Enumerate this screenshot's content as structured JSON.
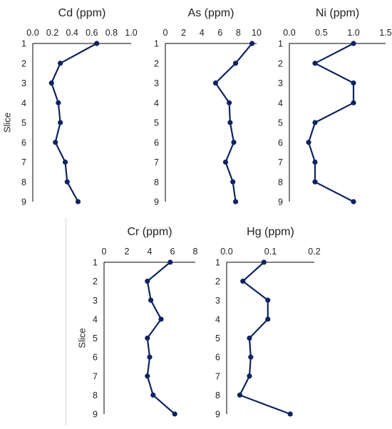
{
  "chart_data": [
    {
      "type": "line",
      "title": "Cd (ppm)",
      "ylabel": "Slice",
      "y": [
        1,
        2,
        3,
        4,
        5,
        6,
        7,
        8,
        9
      ],
      "x": [
        0.65,
        0.28,
        0.19,
        0.26,
        0.28,
        0.23,
        0.33,
        0.35,
        0.46
      ],
      "xlim": [
        0.0,
        1.0
      ],
      "xticks": [
        "0.0",
        "0.2",
        "0.4",
        "0.6",
        "0.8",
        "1.0"
      ],
      "yticks": [
        "1",
        "2",
        "3",
        "4",
        "5",
        "6",
        "7",
        "8",
        "9"
      ],
      "grid": false,
      "color": "#0f2361"
    },
    {
      "type": "line",
      "title": "As (ppm)",
      "ylabel": "",
      "y": [
        1,
        2,
        3,
        4,
        5,
        6,
        7,
        8,
        9
      ],
      "x": [
        9.5,
        7.7,
        5.5,
        7.0,
        7.1,
        7.5,
        6.6,
        7.4,
        7.7
      ],
      "xlim": [
        0,
        10
      ],
      "xticks": [
        "0",
        "2",
        "4",
        "6",
        "8",
        "10"
      ],
      "yticks": [
        "1",
        "2",
        "3",
        "4",
        "5",
        "6",
        "7",
        "8",
        "9"
      ],
      "grid": false,
      "color": "#0f2361"
    },
    {
      "type": "line",
      "title": "Ni (ppm)",
      "ylabel": "",
      "y": [
        1,
        2,
        3,
        4,
        5,
        6,
        7,
        8,
        9
      ],
      "x": [
        1.0,
        0.4,
        1.0,
        1.0,
        0.4,
        0.3,
        0.4,
        0.4,
        1.0
      ],
      "xlim": [
        0.0,
        1.5
      ],
      "xticks": [
        "0.0",
        "0.5",
        "1.0",
        "1.5"
      ],
      "yticks": [
        "1",
        "2",
        "3",
        "4",
        "5",
        "6",
        "7",
        "8",
        "9"
      ],
      "grid": false,
      "color": "#0f2361"
    },
    {
      "type": "line",
      "title": "Cr (ppm)",
      "ylabel": "Slice",
      "y": [
        1,
        2,
        3,
        4,
        5,
        6,
        7,
        8,
        9
      ],
      "x": [
        5.8,
        3.8,
        4.1,
        5.0,
        3.8,
        4.0,
        3.8,
        4.3,
        6.2
      ],
      "xlim": [
        0,
        8
      ],
      "xticks": [
        "0",
        "2",
        "4",
        "6",
        "8"
      ],
      "yticks": [
        "1",
        "2",
        "3",
        "4",
        "5",
        "6",
        "7",
        "8",
        "9"
      ],
      "grid": false,
      "color": "#0f2361"
    },
    {
      "type": "line",
      "title": "Hg (ppm)",
      "ylabel": "",
      "y": [
        1,
        2,
        3,
        4,
        5,
        6,
        7,
        8,
        9
      ],
      "x": [
        0.085,
        0.037,
        0.094,
        0.094,
        0.052,
        0.055,
        0.052,
        0.03,
        0.145
      ],
      "xlim": [
        0.0,
        0.2
      ],
      "xticks": [
        "0.0",
        "0.1",
        "0.2"
      ],
      "yticks": [
        "1",
        "2",
        "3",
        "4",
        "5",
        "6",
        "7",
        "8",
        "9"
      ],
      "grid": false,
      "color": "#0f2361"
    }
  ]
}
